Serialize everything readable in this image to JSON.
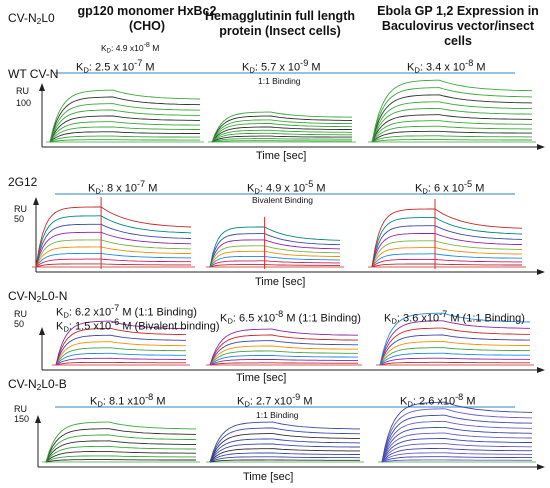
{
  "figure": {
    "top_left_label": "CV-N₂L0",
    "columns": [
      {
        "title": "gp120 monomer HxBc2 (CHO)",
        "subtitle": "KD: 4.9 x10-8 M"
      },
      {
        "title": "Hemagglutinin full length protein (Insect cells)"
      },
      {
        "title": "Ebola GP 1,2 Expression in Baculovirus vector/insect cells"
      }
    ],
    "x_axis_label": "Time [sec]",
    "y_axis_unit": "RU"
  },
  "chart_data": [
    {
      "type": "line",
      "panel": "WT CV-N",
      "y_ticks": [
        100
      ],
      "xlabel": "Time [sec]",
      "ylabel": "RU",
      "annotation": "1:1 Binding",
      "colors": [
        "#3aa83a",
        "#2f2f2f"
      ],
      "subplots": [
        {
          "antigen": "gp120 monomer HxBc2 (CHO)",
          "kd_text": "KD: 2.5 x 10-7 M",
          "n_curves": 10
        },
        {
          "antigen": "Hemagglutinin full length protein (Insect cells)",
          "kd_text": "KD: 5.7 x 10-9 M",
          "n_curves": 10
        },
        {
          "antigen": "Ebola GP 1,2",
          "kd_text": "KD: 3.4 x 10-8 M",
          "n_curves": 11
        }
      ]
    },
    {
      "type": "line",
      "panel": "2G12",
      "y_ticks": [
        50
      ],
      "xlabel": "Time [sec]",
      "ylabel": "RU",
      "annotation": "Bivalent Binding",
      "colors": [
        "#c62828",
        "#d81b60",
        "#1e88e5",
        "#fb8c00",
        "#7cb342",
        "#8e24aa",
        "#3949ab",
        "#00897b"
      ],
      "subplots": [
        {
          "antigen": "gp120 monomer HxBc2 (CHO)",
          "kd_text": "KD: 8 x 10-7 M",
          "n_curves": 9
        },
        {
          "antigen": "Hemagglutinin full length protein (Insect cells)",
          "kd_text": "KD: 4.9 x 10-5 M",
          "n_curves": 8
        },
        {
          "antigen": "Ebola GP 1,2",
          "kd_text": "KD: 6 x 10-5 M",
          "n_curves": 9
        }
      ]
    },
    {
      "type": "line",
      "panel": "CV-N2L0-N",
      "y_ticks": [
        50
      ],
      "xlabel": "Time [sec]",
      "ylabel": "RU",
      "colors": [
        "#c62828",
        "#8e24aa",
        "#1e88e5",
        "#43a047",
        "#fb8c00",
        "#3949ab"
      ],
      "subplots": [
        {
          "antigen": "gp120 monomer HxBc2 (CHO)",
          "kd_text": "KD: 6.2 x10-7 M (1:1 Binding)",
          "kd_text2": "KD: 1.5 x10-6 M (Bivalent binding)",
          "n_curves": 8
        },
        {
          "antigen": "Hemagglutinin full length protein (Insect cells)",
          "kd_text": "KD: 6.5 x10-8 M (1:1 Binding)",
          "n_curves": 8
        },
        {
          "antigen": "Ebola GP 1,2",
          "kd_text": "KD: 3.6 x10-7 M (1:1 Binding)",
          "n_curves": 9
        }
      ]
    },
    {
      "type": "line",
      "panel": "CV-N2L0-B",
      "y_ticks": [
        150
      ],
      "xlabel": "Time [sec]",
      "ylabel": "RU",
      "annotation": "1:1 Binding",
      "colors": [
        "#3aa83a",
        "#3949ab",
        "#2f2f2f",
        "#6a5acd"
      ],
      "subplots": [
        {
          "antigen": "gp120 monomer HxBc2 (CHO)",
          "kd_text": "KD: 8.1 x10-8 M",
          "n_curves": 8
        },
        {
          "antigen": "Hemagglutinin full length protein (Insect cells)",
          "kd_text": "KD: 2.7 x10-9 M",
          "n_curves": 9
        },
        {
          "antigen": "Ebola GP 1,2",
          "kd_text": "KD: 2.6 x10-8 M",
          "n_curves": 12
        }
      ]
    }
  ]
}
